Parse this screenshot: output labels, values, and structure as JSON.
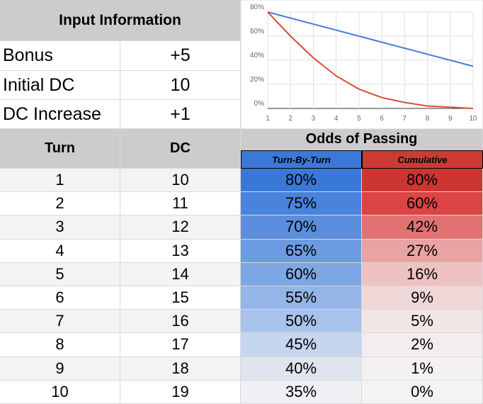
{
  "input": {
    "title": "Input Information",
    "rows": [
      [
        "Bonus",
        "+5"
      ],
      [
        "Initial DC",
        "10"
      ],
      [
        "DC Increase",
        "+1"
      ]
    ]
  },
  "table": {
    "headers": [
      "Turn",
      "DC"
    ],
    "group_header": "Odds of Passing",
    "subheaders": [
      "Turn-By-Turn",
      "Cumulative"
    ],
    "subheader_colors": [
      "#3c78d8",
      "#cc3a33"
    ],
    "rows": [
      [
        1,
        10,
        "80%",
        "80%"
      ],
      [
        2,
        11,
        "75%",
        "60%"
      ],
      [
        3,
        12,
        "70%",
        "42%"
      ],
      [
        4,
        13,
        "65%",
        "27%"
      ],
      [
        5,
        14,
        "60%",
        "16%"
      ],
      [
        6,
        15,
        "55%",
        "9%"
      ],
      [
        7,
        16,
        "50%",
        "5%"
      ],
      [
        8,
        17,
        "45%",
        "2%"
      ],
      [
        9,
        18,
        "40%",
        "1%"
      ],
      [
        10,
        19,
        "35%",
        "0%"
      ]
    ],
    "turn_colors": [
      "#3a78d8",
      "#4a83db",
      "#5b8fde",
      "#6c9be1",
      "#7da7e4",
      "#93b5e7",
      "#a8c3eb",
      "#c5d6ef",
      "#dfe5ef",
      "#eef0f3"
    ],
    "cumulative_colors": [
      "#cc3530",
      "#dd4444",
      "#e27272",
      "#e9a3a3",
      "#efc2c2",
      "#f0d7d7",
      "#f2e5e5",
      "#f3eded",
      "#f4f1f1",
      "#f4f2f2"
    ]
  },
  "chart_data": {
    "type": "line",
    "x": [
      1,
      2,
      3,
      4,
      5,
      6,
      7,
      8,
      9,
      10
    ],
    "xlim": [
      1,
      10
    ],
    "xticks": [
      1,
      2,
      3,
      4,
      5,
      6,
      7,
      8,
      9,
      10
    ],
    "ylim": [
      0,
      80
    ],
    "yticks": [
      {
        "value": 0,
        "label": "0%"
      },
      {
        "value": 20,
        "label": "20%"
      },
      {
        "value": 40,
        "label": "40%"
      },
      {
        "value": 60,
        "label": "60%"
      },
      {
        "value": 80,
        "label": "80%"
      }
    ],
    "grid": true,
    "series": [
      {
        "color": "#4a7fde",
        "values": [
          80,
          75,
          70,
          65,
          60,
          55,
          50,
          45,
          40,
          35
        ]
      },
      {
        "color": "#dd4b39",
        "values": [
          80,
          60,
          42,
          27,
          16,
          9,
          5,
          2,
          1,
          0
        ]
      }
    ]
  }
}
